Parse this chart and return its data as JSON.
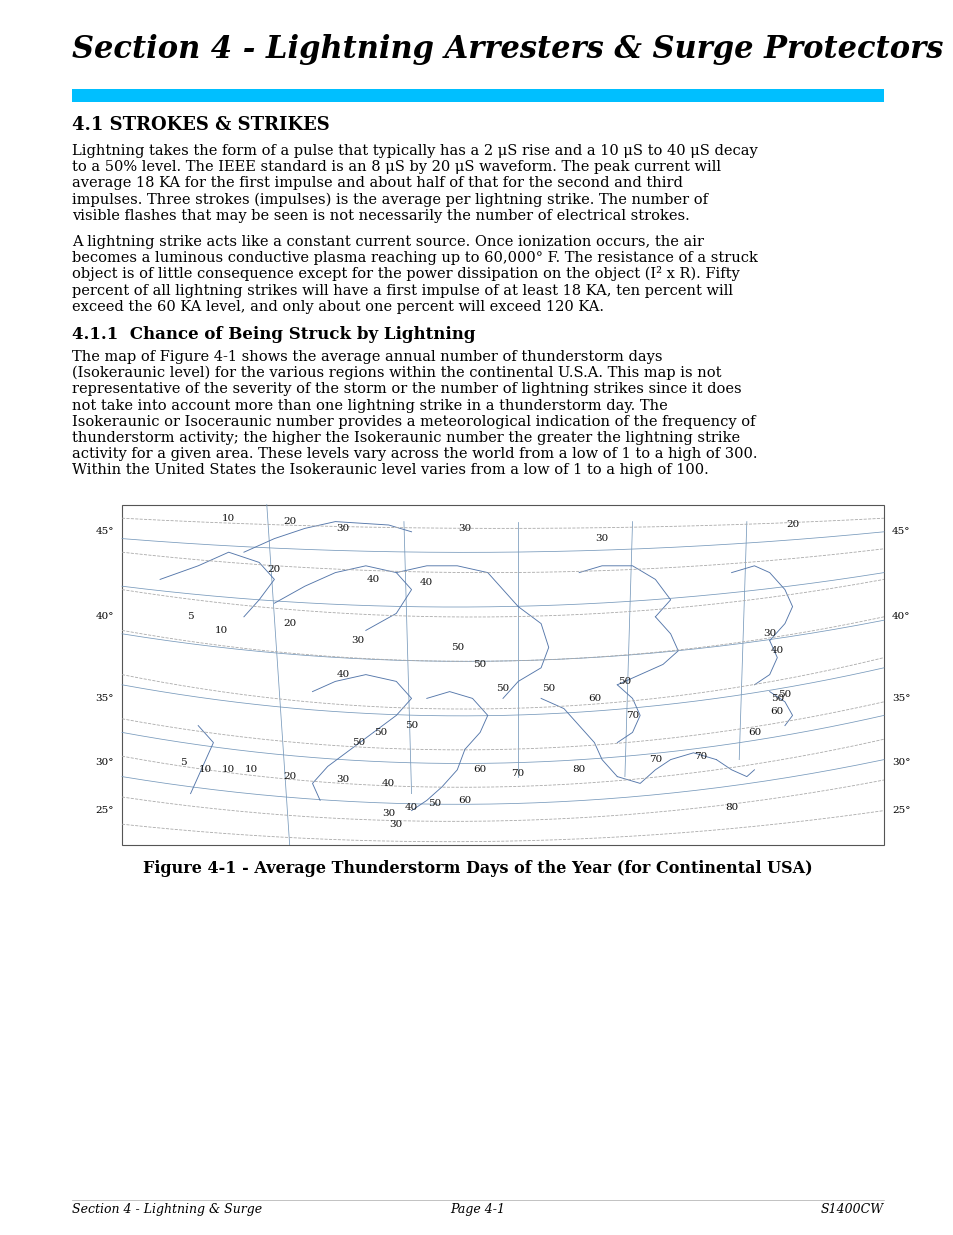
{
  "title": "Section 4 - Lightning Arresters & Surge Protectors",
  "cyan_bar_color": "#00BFFF",
  "section_header": "4.1 STROKES & STRIKES",
  "subsection_header": "4.1.1  Chance of Being Struck by Lightning",
  "para1_lines": [
    "Lightning takes the form of a pulse that typically has a 2 μS rise and a 10 μS to 40 μS decay",
    "to a 50% level. The IEEE standard is an 8 μS by 20 μS waveform. The peak current will",
    "average 18 KA for the first impulse and about half of that for the second and third",
    "impulses. Three strokes (impulses) is the average per lightning strike. The number of",
    "visible flashes that may be seen is not necessarily the number of electrical strokes."
  ],
  "para2_lines": [
    "A lightning strike acts like a constant current source. Once ionization occurs, the air",
    "becomes a luminous conductive plasma reaching up to 60,000° F. The resistance of a struck",
    "object is of little consequence except for the power dissipation on the object (I² x R). Fifty",
    "percent of all lightning strikes will have a first impulse of at least 18 KA, ten percent will",
    "exceed the 60 KA level, and only about one percent will exceed 120 KA."
  ],
  "para3_lines": [
    "The map of Figure 4-1 shows the average annual number of thunderstorm days",
    "(Isokeraunic level) for the various regions within the continental U.S.A. This map is not",
    "representative of the severity of the storm or the number of lightning strikes since it does",
    "not take into account more than one lightning strike in a thunderstorm day. The",
    "Isokeraunic or Isoceraunic number provides a meteorological indication of the frequency of",
    "thunderstorm activity; the higher the Isokeraunic number the greater the lightning strike",
    "activity for a given area. These levels vary across the world from a low of 1 to a high of 300.",
    "Within the United States the Isokeraunic level varies from a low of 1 to a high of 100."
  ],
  "figure_caption": "Figure 4-1 - Average Thunderstorm Days of the Year (for Continental USA)",
  "footer_left": "Section 4 - Lightning & Surge",
  "footer_center": "Page 4-1",
  "footer_right": "S1400CW",
  "bg_color": "#FFFFFF",
  "text_color": "#000000",
  "title_color": "#000000",
  "body_fontsize": 10.5,
  "title_fontsize": 22,
  "header1_fontsize": 13,
  "header2_fontsize": 12
}
